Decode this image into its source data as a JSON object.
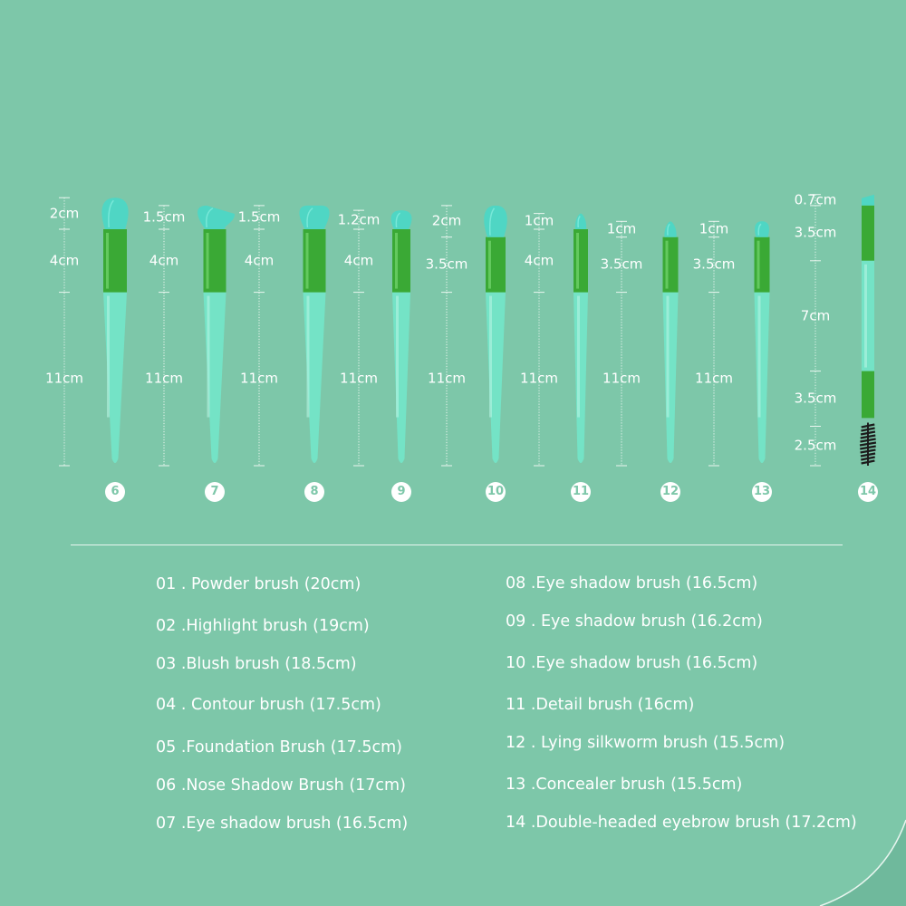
{
  "colors": {
    "background": "#7dc7a9",
    "bristle": "#4fd6c4",
    "ferrule": "#3aa935",
    "handle": "#74e3c6",
    "scale": "#eaf6f0",
    "text": "#ffffff"
  },
  "brushes": [
    {
      "number": "6",
      "segments": [
        {
          "label": "2cm",
          "cm": 2
        },
        {
          "label": "4cm",
          "cm": 4
        },
        {
          "label": "11cm",
          "cm": 11
        }
      ]
    },
    {
      "number": "7",
      "segments": [
        {
          "label": "1.5cm",
          "cm": 1.5
        },
        {
          "label": "4cm",
          "cm": 4
        },
        {
          "label": "11cm",
          "cm": 11
        }
      ]
    },
    {
      "number": "8",
      "segments": [
        {
          "label": "1.5cm",
          "cm": 1.5
        },
        {
          "label": "4cm",
          "cm": 4
        },
        {
          "label": "11cm",
          "cm": 11
        }
      ]
    },
    {
      "number": "9",
      "segments": [
        {
          "label": "1.2cm",
          "cm": 1.2
        },
        {
          "label": "4cm",
          "cm": 4
        },
        {
          "label": "11cm",
          "cm": 11
        }
      ]
    },
    {
      "number": "10",
      "segments": [
        {
          "label": "2cm",
          "cm": 2
        },
        {
          "label": "3.5cm",
          "cm": 3.5
        },
        {
          "label": "11cm",
          "cm": 11
        }
      ]
    },
    {
      "number": "11",
      "segments": [
        {
          "label": "1cm",
          "cm": 1
        },
        {
          "label": "4cm",
          "cm": 4
        },
        {
          "label": "11cm",
          "cm": 11
        }
      ]
    },
    {
      "number": "12",
      "segments": [
        {
          "label": "1cm",
          "cm": 1
        },
        {
          "label": "3.5cm",
          "cm": 3.5
        },
        {
          "label": "11cm",
          "cm": 11
        }
      ]
    },
    {
      "number": "13",
      "segments": [
        {
          "label": "1cm",
          "cm": 1
        },
        {
          "label": "3.5cm",
          "cm": 3.5
        },
        {
          "label": "11cm",
          "cm": 11
        }
      ]
    },
    {
      "number": "14",
      "segments": [
        {
          "label": "0.7cm",
          "cm": 0.7
        },
        {
          "label": "3.5cm",
          "cm": 3.5
        },
        {
          "label": "7cm",
          "cm": 7
        },
        {
          "label": "3.5cm",
          "cm": 3.5
        },
        {
          "label": "2.5cm",
          "cm": 2.5
        }
      ]
    }
  ],
  "list_left": [
    "01 . Powder brush (20cm)",
    "02 .Highlight brush (19cm)",
    "03 .Blush brush (18.5cm)",
    "04 . Contour brush (17.5cm)",
    "05 .Foundation Brush (17.5cm)",
    "06 .Nose Shadow Brush (17cm)",
    "07 .Eye shadow brush (16.5cm)"
  ],
  "list_right": [
    "08 .Eye shadow brush (16.5cm)",
    "09 . Eye shadow brush (16.2cm)",
    "10 .Eye shadow brush (16.5cm)",
    "11 .Detail brush (16cm)",
    "12 . Lying silkworm brush (15.5cm)",
    "13 .Concealer brush (15.5cm)",
    "14 .Double-headed eyebrow brush (17.2cm)"
  ]
}
